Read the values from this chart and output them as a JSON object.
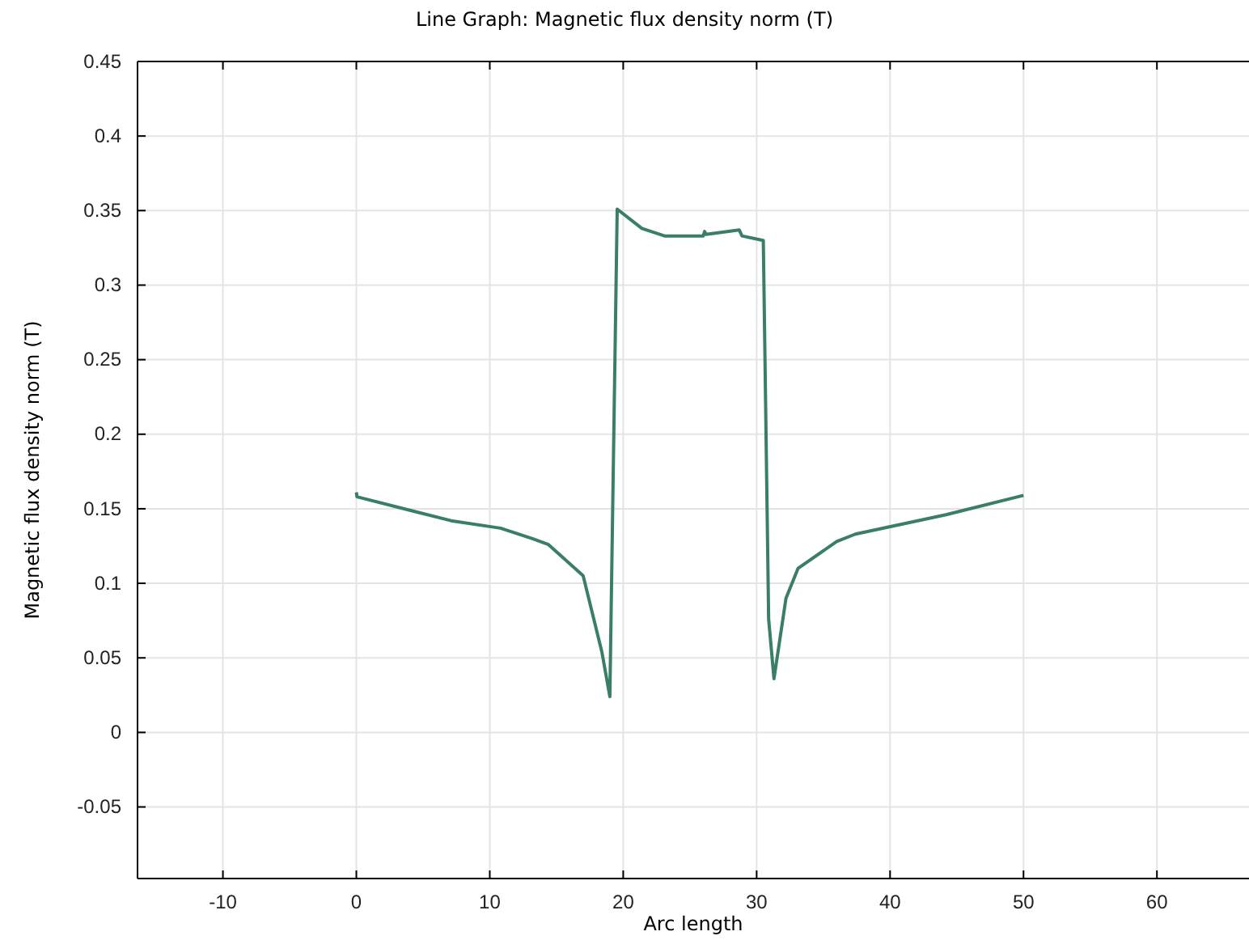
{
  "chart_data": {
    "type": "line",
    "title": "Line Graph: Magnetic flux density norm (T)",
    "xlabel": "Arc length",
    "ylabel": "Magnetic flux density norm (T)",
    "xlim": [
      -16.4,
      66.9
    ],
    "ylim": [
      -0.098,
      0.45
    ],
    "xticks": [
      -10,
      0,
      10,
      20,
      30,
      40,
      50,
      60
    ],
    "yticks": [
      {
        "value": -0.05,
        "label": "-0.05"
      },
      {
        "value": 0,
        "label": "0"
      },
      {
        "value": 0.05,
        "label": "0.05"
      },
      {
        "value": 0.1,
        "label": "0.1"
      },
      {
        "value": 0.15,
        "label": "0.15"
      },
      {
        "value": 0.2,
        "label": "0.2"
      },
      {
        "value": 0.25,
        "label": "0.25"
      },
      {
        "value": 0.3,
        "label": "0.3"
      },
      {
        "value": 0.35,
        "label": "0.35"
      },
      {
        "value": 0.4,
        "label": "0.4"
      },
      {
        "value": 0.45,
        "label": "0.45"
      }
    ],
    "grid": true,
    "series": [
      {
        "color": "#3a7d68",
        "x": [
          0,
          0.05,
          7.1,
          10.8,
          13.2,
          14.4,
          17.0,
          18.4,
          19.0,
          19.55,
          21.4,
          23.1,
          26.0,
          26.1,
          26.2,
          28.7,
          28.9,
          30.5,
          30.9,
          31.3,
          32.2,
          33.1,
          36.0,
          37.4,
          44.2,
          50
        ],
        "values": [
          0.161,
          0.158,
          0.142,
          0.137,
          0.13,
          0.126,
          0.105,
          0.054,
          0.024,
          0.351,
          0.338,
          0.333,
          0.333,
          0.336,
          0.334,
          0.337,
          0.333,
          0.33,
          0.076,
          0.036,
          0.09,
          0.11,
          0.128,
          0.133,
          0.146,
          0.159
        ]
      }
    ]
  }
}
